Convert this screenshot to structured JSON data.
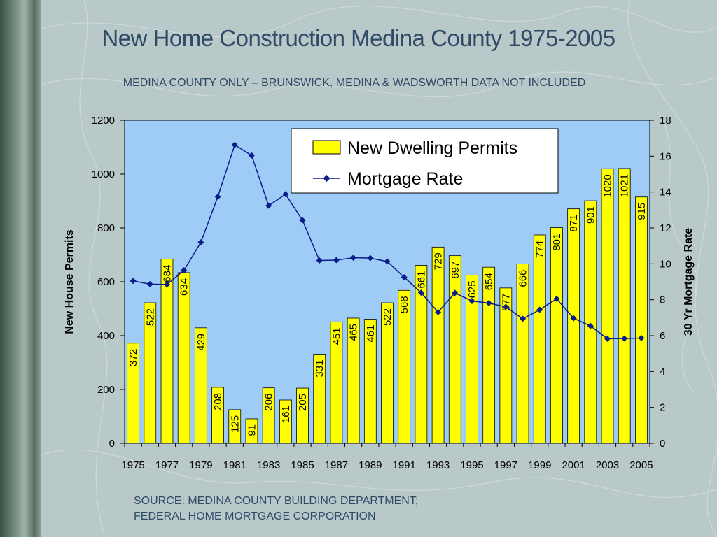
{
  "slide": {
    "title": "New Home Construction Medina County 1975-2005",
    "subtitle": "MEDINA COUNTY ONLY – BRUNSWICK, MEDINA & WADSWORTH DATA NOT INCLUDED",
    "source_line1": "SOURCE: MEDINA COUNTY BUILDING DEPARTMENT;",
    "source_line2": "FEDERAL HOME MORTGAGE CORPORATION"
  },
  "colors": {
    "plot_bg": "#9fcbf7",
    "bar_fill": "#ffff00",
    "line": "#0a1c8a",
    "title": "#2f4a67"
  },
  "chart_data": {
    "type": "bar",
    "x": [
      1975,
      1976,
      1977,
      1978,
      1979,
      1980,
      1981,
      1982,
      1983,
      1984,
      1985,
      1986,
      1987,
      1988,
      1989,
      1990,
      1991,
      1992,
      1993,
      1994,
      1995,
      1996,
      1997,
      1998,
      1999,
      2000,
      2001,
      2002,
      2003,
      2004,
      2005
    ],
    "x_tick_labels": [
      "1975",
      "1977",
      "1979",
      "1981",
      "1983",
      "1985",
      "1987",
      "1989",
      "1991",
      "1993",
      "1995",
      "1997",
      "1999",
      "2001",
      "2003",
      "2005"
    ],
    "series": [
      {
        "name": "New Dwelling Permits",
        "type": "bar",
        "axis": "left",
        "values": [
          372,
          522,
          684,
          634,
          429,
          208,
          125,
          91,
          206,
          161,
          205,
          331,
          451,
          465,
          461,
          522,
          568,
          661,
          729,
          697,
          625,
          654,
          577,
          666,
          774,
          801,
          871,
          901,
          1020,
          1021,
          915
        ]
      },
      {
        "name": "Mortgage Rate",
        "type": "line",
        "axis": "right",
        "values": [
          9.05,
          8.87,
          8.85,
          9.64,
          11.2,
          13.74,
          16.63,
          16.04,
          13.24,
          13.88,
          12.43,
          10.19,
          10.21,
          10.34,
          10.32,
          10.13,
          9.25,
          8.39,
          7.31,
          8.38,
          7.93,
          7.81,
          7.6,
          6.94,
          7.44,
          8.05,
          6.97,
          6.54,
          5.83,
          5.84,
          5.87
        ]
      }
    ],
    "ylabel": "New House Permits",
    "ylim": [
      0,
      1200
    ],
    "yticks": [
      0,
      200,
      400,
      600,
      800,
      1000,
      1200
    ],
    "y2label": "30 Yr Mortgage Rate",
    "y2lim": [
      0,
      18
    ],
    "y2ticks": [
      0,
      2,
      4,
      6,
      8,
      10,
      12,
      14,
      16,
      18
    ],
    "legend_position": "top-right",
    "data_labels": "on bars, rotated"
  }
}
